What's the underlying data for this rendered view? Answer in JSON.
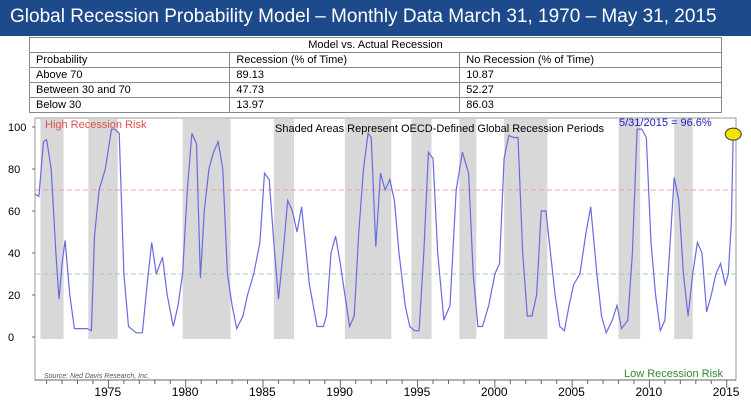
{
  "title": "Global Recession Probability Model – Monthly Data March 31, 1970 – May 31, 2015",
  "table": {
    "caption": "Model vs. Actual Recession",
    "headers": [
      "Probability",
      "Recession (% of Time)",
      "No Recession (% of Time)"
    ],
    "rows": [
      [
        "Above 70",
        "89.13",
        "10.87"
      ],
      [
        "Between 30 and 70",
        "47.73",
        "52.27"
      ],
      [
        "Below 30",
        "13.97",
        "86.03"
      ]
    ]
  },
  "colors": {
    "title_bg": "#1d4a8a",
    "line": "#6a6ae0",
    "shade": "#d8d8d8",
    "high_line": "#e8a0a0",
    "low_line": "#a0d0a0",
    "high_text": "#e05050",
    "low_text": "#2e8b2e",
    "marker": "#f2e600"
  },
  "chart_data": {
    "type": "line",
    "annotations": {
      "high": "High Recession Risk",
      "low": "Low Recession Risk",
      "shaded_note": "Shaded Areas Represent OECD-Defined Global Recession Periods",
      "current": "5/31/2015 = 96.6%",
      "source": "Source: Ned Davis Research, Inc."
    },
    "ylim": [
      0,
      100
    ],
    "xlim": [
      1970.25,
      2015.6
    ],
    "y_ticks": [
      0,
      20,
      40,
      60,
      80,
      100
    ],
    "x_ticks": [
      1975,
      1980,
      1985,
      1990,
      1995,
      2000,
      2005,
      2010,
      2015
    ],
    "thresholds": [
      70,
      30
    ],
    "recession_periods": [
      [
        1970.6,
        1972.1
      ],
      [
        1973.7,
        1975.6
      ],
      [
        1979.8,
        1982.9
      ],
      [
        1985.7,
        1987.0
      ],
      [
        1990.3,
        1993.3
      ],
      [
        1994.6,
        1995.9
      ],
      [
        1997.7,
        1998.8
      ],
      [
        2000.6,
        2003.4
      ],
      [
        2008.0,
        2009.4
      ],
      [
        2011.6,
        2012.8
      ]
    ],
    "series": [
      {
        "x": [
          1970.25,
          1970.5,
          1970.8,
          1971.0,
          1971.3,
          1971.6,
          1971.8,
          1972.0,
          1972.2,
          1972.5,
          1972.8,
          1973.2,
          1973.6,
          1973.9,
          1974.1,
          1974.4,
          1974.8,
          1975.2,
          1975.4,
          1975.7,
          1976.0,
          1976.3,
          1976.8,
          1977.2,
          1977.5,
          1977.8,
          1978.1,
          1978.5,
          1978.8,
          1979.2,
          1979.5,
          1979.8,
          1980.1,
          1980.4,
          1980.7,
          1980.95,
          1981.2,
          1981.5,
          1981.8,
          1982.1,
          1982.4,
          1982.7,
          1983.0,
          1983.3,
          1983.7,
          1984.0,
          1984.4,
          1984.8,
          1985.1,
          1985.4,
          1985.7,
          1986.0,
          1986.3,
          1986.6,
          1986.9,
          1987.2,
          1987.5,
          1988.0,
          1988.5,
          1988.9,
          1989.1,
          1989.4,
          1989.7,
          1990.0,
          1990.3,
          1990.6,
          1990.9,
          1991.2,
          1991.5,
          1991.8,
          1992.0,
          1992.3,
          1992.6,
          1992.9,
          1993.2,
          1993.5,
          1993.8,
          1994.2,
          1994.5,
          1994.8,
          1995.1,
          1995.4,
          1995.7,
          1996.0,
          1996.3,
          1996.7,
          1997.1,
          1997.5,
          1997.9,
          1998.3,
          1998.6,
          1998.9,
          1999.2,
          1999.6,
          2000.0,
          2000.3,
          2000.6,
          2000.9,
          2001.2,
          2001.5,
          2001.8,
          2002.1,
          2002.4,
          2002.7,
          2003.0,
          2003.3,
          2003.6,
          2003.9,
          2004.2,
          2004.5,
          2004.8,
          2005.1,
          2005.5,
          2005.9,
          2006.2,
          2006.6,
          2006.9,
          2007.2,
          2007.6,
          2007.9,
          2008.2,
          2008.6,
          2008.9,
          2009.2,
          2009.5,
          2009.8,
          2010.1,
          2010.4,
          2010.7,
          2011.0,
          2011.3,
          2011.6,
          2011.9,
          2012.2,
          2012.5,
          2012.8,
          2013.1,
          2013.4,
          2013.7,
          2014.0,
          2014.3,
          2014.6,
          2014.9,
          2015.1,
          2015.3,
          2015.42
        ],
        "y": [
          68,
          67,
          93,
          94,
          80,
          40,
          18,
          35,
          46,
          20,
          4,
          4,
          4,
          3,
          48,
          70,
          80,
          99,
          99,
          97,
          30,
          5,
          2,
          2,
          25,
          45,
          30,
          38,
          20,
          5,
          15,
          30,
          70,
          97,
          92,
          28,
          60,
          80,
          88,
          93,
          80,
          30,
          15,
          4,
          10,
          20,
          30,
          45,
          78,
          75,
          45,
          18,
          40,
          65,
          60,
          50,
          62,
          25,
          5,
          5,
          10,
          40,
          48,
          35,
          20,
          5,
          10,
          50,
          80,
          97,
          95,
          43,
          78,
          70,
          75,
          65,
          40,
          15,
          5,
          3,
          3,
          40,
          88,
          85,
          40,
          8,
          15,
          70,
          88,
          78,
          30,
          5,
          5,
          15,
          30,
          35,
          85,
          96,
          95,
          95,
          40,
          10,
          10,
          20,
          60,
          60,
          40,
          20,
          5,
          3,
          15,
          25,
          30,
          50,
          62,
          30,
          10,
          2,
          8,
          15,
          4,
          8,
          40,
          99,
          99,
          95,
          45,
          20,
          3,
          8,
          40,
          76,
          65,
          30,
          10,
          30,
          45,
          40,
          12,
          20,
          30,
          35,
          25,
          30,
          55,
          96.6
        ]
      }
    ]
  }
}
